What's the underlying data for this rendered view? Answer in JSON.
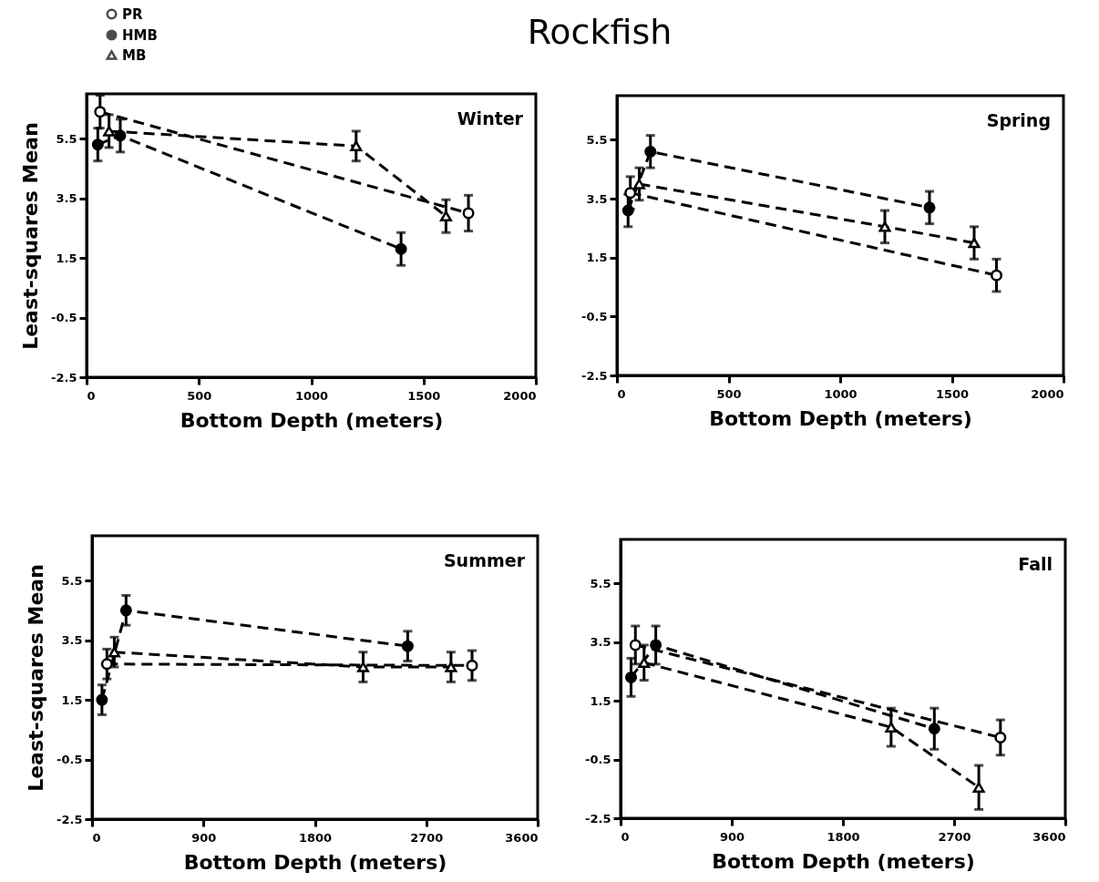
{
  "chart_data": [
    {
      "type": "line",
      "title": "Rockfish",
      "xlabel": "Bottom Depth (meters)",
      "ylabel": "Least-squares Mean",
      "annotations": [
        "Winter"
      ],
      "line_style": "dashed",
      "legend": "top left",
      "xlim": [
        0,
        2000
      ],
      "xticks": [
        0,
        500,
        1000,
        1500,
        2000
      ],
      "ylim": [
        -2.5,
        7
      ],
      "yticks": [
        -2.5,
        -0.5,
        1.5,
        3.5,
        5.5
      ],
      "series": [
        {
          "name": "PR",
          "color": "#000000",
          "marker": "circle-open",
          "x": [
            60,
            1700
          ],
          "values": [
            6.4,
            3.0
          ],
          "errors": [
            0.55,
            0.6
          ]
        },
        {
          "name": "HMB",
          "color": "#000000",
          "marker": "circle",
          "x": [
            50,
            150,
            1400
          ],
          "values": [
            5.3,
            5.6,
            1.8
          ],
          "errors": [
            0.55,
            0.55,
            0.55
          ]
        },
        {
          "name": "MB",
          "color": "#000000",
          "marker": "triangle-open",
          "x": [
            100,
            1200,
            1600
          ],
          "values": [
            5.75,
            5.25,
            2.9
          ],
          "errors": [
            0.55,
            0.5,
            0.55
          ]
        }
      ]
    },
    {
      "type": "line",
      "xlabel": "Bottom Depth (meters)",
      "annotations": [
        "Spring"
      ],
      "line_style": "dashed",
      "xlim": [
        0,
        2000
      ],
      "xticks": [
        0,
        500,
        1000,
        1500,
        2000
      ],
      "ylim": [
        -2.5,
        7
      ],
      "yticks": [
        -2.5,
        -0.5,
        1.5,
        3.5,
        5.5
      ],
      "series": [
        {
          "color": "#000000",
          "marker": "circle-open",
          "x": [
            60,
            1700
          ],
          "values": [
            3.7,
            0.9
          ],
          "errors": [
            0.55,
            0.55
          ]
        },
        {
          "color": "#000000",
          "marker": "circle",
          "x": [
            50,
            150,
            1400
          ],
          "values": [
            3.1,
            5.1,
            3.2
          ],
          "errors": [
            0.55,
            0.55,
            0.55
          ]
        },
        {
          "color": "#000000",
          "marker": "triangle-open",
          "x": [
            100,
            1200,
            1600
          ],
          "values": [
            4.0,
            2.55,
            2.0
          ],
          "errors": [
            0.55,
            0.55,
            0.55
          ]
        }
      ]
    },
    {
      "type": "line",
      "xlabel": "Bottom Depth (meters)",
      "ylabel": "Least-squares Mean",
      "annotations": [
        "Summer"
      ],
      "line_style": "dashed",
      "xlim": [
        0,
        3600
      ],
      "xticks": [
        0,
        900,
        1800,
        2700,
        3600
      ],
      "ylim": [
        -2.5,
        7
      ],
      "yticks": [
        -2.5,
        -0.5,
        1.5,
        3.5,
        5.5
      ],
      "series": [
        {
          "color": "#000000",
          "marker": "circle-open",
          "x": [
            120,
            3070
          ],
          "values": [
            2.7,
            2.65
          ],
          "errors": [
            0.5,
            0.5
          ]
        },
        {
          "color": "#000000",
          "marker": "circle",
          "x": [
            80,
            275,
            2550
          ],
          "values": [
            1.5,
            4.5,
            3.3
          ],
          "errors": [
            0.5,
            0.5,
            0.5
          ]
        },
        {
          "color": "#000000",
          "marker": "triangle-open",
          "x": [
            180,
            2190,
            2900
          ],
          "values": [
            3.1,
            2.6,
            2.6
          ],
          "errors": [
            0.5,
            0.5,
            0.5
          ]
        }
      ]
    },
    {
      "type": "line",
      "xlabel": "Bottom Depth (meters)",
      "annotations": [
        "Fall"
      ],
      "line_style": "dashed",
      "xlim": [
        0,
        3600
      ],
      "xticks": [
        0,
        900,
        1800,
        2700,
        3600
      ],
      "ylim": [
        -2.5,
        7
      ],
      "yticks": [
        -2.5,
        -0.5,
        1.5,
        3.5,
        5.5
      ],
      "series": [
        {
          "color": "#000000",
          "marker": "circle-open",
          "x": [
            120,
            3075
          ],
          "values": [
            3.4,
            0.25
          ],
          "errors": [
            0.65,
            0.6
          ]
        },
        {
          "color": "#000000",
          "marker": "circle",
          "x": [
            85,
            285,
            2540
          ],
          "values": [
            2.3,
            3.4,
            0.55
          ],
          "errors": [
            0.65,
            0.65,
            0.7
          ]
        },
        {
          "color": "#000000",
          "marker": "triangle-open",
          "x": [
            190,
            2190,
            2900
          ],
          "values": [
            2.8,
            0.6,
            -1.45
          ],
          "errors": [
            0.6,
            0.65,
            0.75
          ]
        }
      ]
    }
  ]
}
